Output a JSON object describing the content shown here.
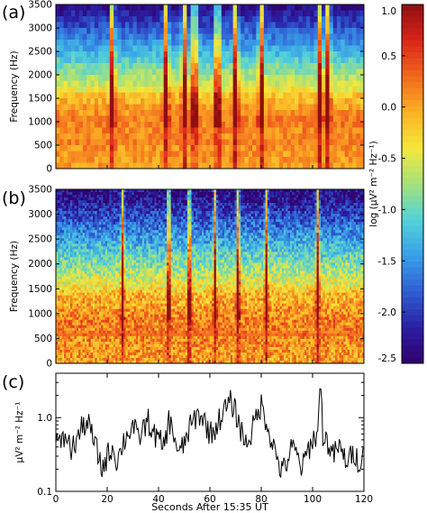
{
  "panels": {
    "a": {
      "label": "(a)",
      "ylabel": "Frequency (Hz)"
    },
    "b": {
      "label": "(b)",
      "ylabel": "Frequency (Hz)"
    },
    "c": {
      "label": "(c)",
      "ylabel": "μV² m⁻² Hz⁻¹"
    }
  },
  "colorbar": {
    "label": "log (μV² m⁻² Hz⁻¹)",
    "ticks": [
      "1.0",
      "0.5",
      "0.0",
      "-0.5",
      "-1.0",
      "-1.5",
      "-2.0",
      "-2.5"
    ],
    "range": [
      -2.5,
      1.0
    ],
    "colors": [
      "#31006b",
      "#2a1fa4",
      "#2f5fd3",
      "#39a0e8",
      "#52d2d8",
      "#a6e07a",
      "#f4e83a",
      "#fbb124",
      "#f2671f",
      "#d92419",
      "#8e0f10"
    ]
  },
  "chart_data": [
    {
      "type": "heatmap",
      "panel": "a",
      "title": "",
      "ylabel": "Frequency (Hz)",
      "xlim": [
        0,
        120
      ],
      "ylim": [
        0,
        3500
      ],
      "yticks": [
        0,
        500,
        1000,
        1500,
        2000,
        2500,
        3000,
        3500
      ],
      "colorscale_log_range": [
        -2.5,
        1.0
      ],
      "features": {
        "band_line_hz": 600,
        "strong_band_hz": [
          1000,
          1600
        ],
        "bursts_s": [
          22,
          43,
          50,
          54,
          63,
          70,
          80,
          103,
          106
        ]
      }
    },
    {
      "type": "heatmap",
      "panel": "b",
      "title": "",
      "ylabel": "Frequency (Hz)",
      "xlim": [
        0,
        120
      ],
      "ylim": [
        0,
        3500
      ],
      "yticks": [
        0,
        500,
        1000,
        1500,
        2000,
        2500,
        3000,
        3500
      ],
      "colorscale_log_range": [
        -2.5,
        1.0
      ],
      "features": {
        "band_line_hz": 600,
        "strong_band_hz": [
          800,
          1500
        ],
        "bursts_s": [
          26,
          44,
          52,
          62,
          71,
          82,
          102
        ]
      }
    },
    {
      "type": "line",
      "panel": "c",
      "xlabel": "Seconds After 15:35 UT",
      "ylabel": "μV² m⁻² Hz⁻¹",
      "xlim": [
        0,
        120
      ],
      "ylim": [
        0.1,
        4.0
      ],
      "yscale": "log",
      "xticks": [
        0,
        20,
        40,
        60,
        80,
        100,
        120
      ],
      "yticks": [
        0.1,
        1.0
      ],
      "ytick_labels": [
        "0.1",
        "1.0"
      ],
      "series": [
        {
          "x": [
            0,
            2,
            4,
            6,
            8,
            10,
            12,
            14,
            16,
            18,
            20,
            22,
            24,
            26,
            28,
            30,
            32,
            34,
            36,
            38,
            40,
            42,
            44,
            46,
            48,
            50,
            52,
            54,
            56,
            58,
            60,
            62,
            64,
            66,
            68,
            70,
            72,
            74,
            76,
            78,
            80,
            82,
            84,
            86,
            88,
            90,
            92,
            94,
            96,
            98,
            100,
            102,
            103,
            104,
            106,
            108,
            110,
            112,
            114,
            116,
            118,
            120
          ],
          "y": [
            0.55,
            0.4,
            0.6,
            0.35,
            0.5,
            0.7,
            0.9,
            0.6,
            0.35,
            0.2,
            0.3,
            0.4,
            0.25,
            0.45,
            0.6,
            0.8,
            0.5,
            0.7,
            0.9,
            0.6,
            0.5,
            0.4,
            0.9,
            0.6,
            0.3,
            0.45,
            0.7,
            0.95,
            1.1,
            0.9,
            0.6,
            0.7,
            1.0,
            1.3,
            1.6,
            1.2,
            0.7,
            0.45,
            0.6,
            1.0,
            1.5,
            0.9,
            0.5,
            0.3,
            0.18,
            0.25,
            0.4,
            0.3,
            0.2,
            0.35,
            0.5,
            0.6,
            3.5,
            0.6,
            0.45,
            0.3,
            0.4,
            0.3,
            0.25,
            0.35,
            0.25,
            0.3
          ]
        }
      ]
    }
  ]
}
